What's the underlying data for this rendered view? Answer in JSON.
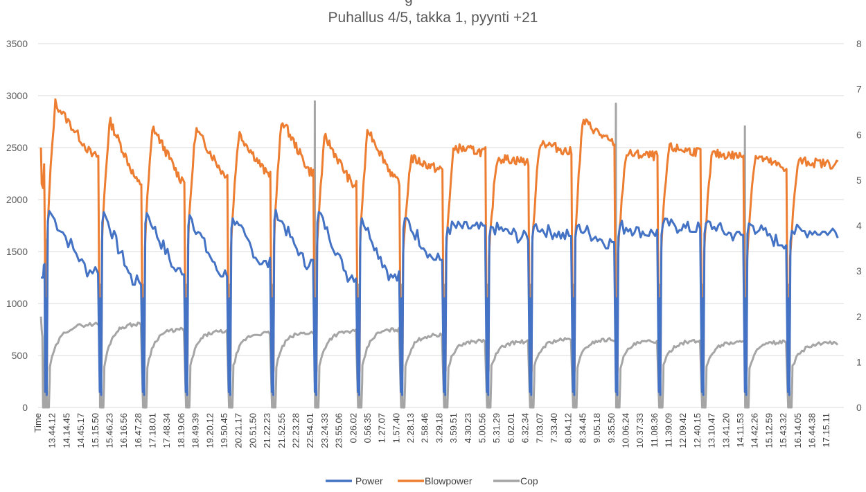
{
  "chart_data": {
    "type": "line",
    "title": "Puhallus 4/5, takka 1, pyynti +21",
    "title_above": "g",
    "ylim": [
      0,
      3500
    ],
    "yticks": [
      0,
      500,
      1000,
      1500,
      2000,
      2500,
      3000,
      3500
    ],
    "y2lim": [
      0,
      8
    ],
    "y2ticks": [
      0,
      1,
      2,
      3,
      4,
      5,
      6,
      7,
      8
    ],
    "xaxis_label": "Time",
    "categories": [
      "13.44.12",
      "14.14.45",
      "14.45.17",
      "15.15.50",
      "15.46.23",
      "16.16.56",
      "16.47.28",
      "17.18.01",
      "17.48.34",
      "18.19.06",
      "18.49.39",
      "19.20.12",
      "19.50.45",
      "20.21.17",
      "20.51.50",
      "21.22.23",
      "21.52.55",
      "22.23.28",
      "22.54.01",
      "23.24.33",
      "23.55.06",
      "0.26.02",
      "0.56.35",
      "1.27.07",
      "1.57.40",
      "2.28.13",
      "2.58.46",
      "3.29.18",
      "3.59.51",
      "4.30.23",
      "5.00.56",
      "5.31.29",
      "6.02.01",
      "6.32.34",
      "7.03.07",
      "7.33.40",
      "8.04.12",
      "8.34.45",
      "9.05.18",
      "9.35.50",
      "10.06.24",
      "10.37.33",
      "11.08.36",
      "11.39.09",
      "12.09.42",
      "12.40.15",
      "13.10.47",
      "13.41.20",
      "14.11.53",
      "14.42.26",
      "15.12.59",
      "15.43.32",
      "16.14.05",
      "16.44.38",
      "17.15.11"
    ],
    "cycle_starts": [
      0.5,
      4.3,
      7.3,
      10.3,
      13.3,
      16.3,
      19.3,
      22.3,
      25.3,
      28.3,
      31.3,
      34.3,
      37.3,
      40.3,
      43.3,
      46.3,
      49.3,
      52.3
    ],
    "x_end": 55.9,
    "series": [
      {
        "name": "Power",
        "axis": "left",
        "color": "#4472C4",
        "start_value": 1250,
        "cycle_peaks": [
          1890,
          1880,
          1870,
          1850,
          1820,
          1900,
          1880,
          1820,
          1820,
          1730,
          1740,
          1740,
          1740,
          1740,
          1760,
          1770,
          1770,
          1700
        ],
        "cycle_ends": [
          1320,
          1210,
          1310,
          1290,
          1380,
          1390,
          1270,
          1250,
          1420,
          1720,
          1640,
          1650,
          1590,
          1680,
          1720,
          1660,
          1590,
          1690
        ]
      },
      {
        "name": "Blowpower",
        "axis": "left",
        "color": "#ED7D31",
        "start_value": 2500,
        "cycle_peaks": [
          2930,
          2760,
          2700,
          2680,
          2640,
          2770,
          2610,
          2680,
          2400,
          2500,
          2400,
          2560,
          2760,
          2440,
          2500,
          2440,
          2420,
          2370
        ],
        "cycle_ends": [
          2420,
          2160,
          2200,
          2250,
          2250,
          2270,
          2140,
          2180,
          2290,
          2460,
          2370,
          2460,
          2550,
          2420,
          2460,
          2420,
          2310,
          2340
        ]
      },
      {
        "name": "Cop",
        "axis": "right",
        "color": "#A5A5A5",
        "start_value": 2.0,
        "cycle_peaks": [
          1.84,
          1.84,
          1.72,
          1.68,
          1.64,
          1.65,
          1.68,
          1.72,
          1.6,
          1.47,
          1.45,
          1.5,
          1.5,
          1.46,
          1.46,
          1.44,
          1.44,
          1.42
        ],
        "cycle_spikes": [
          0,
          2.7,
          0,
          0,
          0,
          0,
          6.73,
          0,
          0,
          0,
          0,
          0,
          0,
          6.68,
          0,
          0,
          6.18,
          0
        ]
      }
    ]
  }
}
